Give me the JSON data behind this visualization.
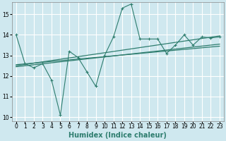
{
  "title": "",
  "xlabel": "Humidex (Indice chaleur)",
  "ylabel": "",
  "background_color": "#cfe8ef",
  "grid_color": "#ffffff",
  "line_color": "#2e7d6e",
  "xlim": [
    -0.5,
    23.5
  ],
  "ylim": [
    9.8,
    15.6
  ],
  "yticks": [
    10,
    11,
    12,
    13,
    14,
    15
  ],
  "xticks": [
    0,
    1,
    2,
    3,
    4,
    5,
    6,
    7,
    8,
    9,
    10,
    11,
    12,
    13,
    14,
    15,
    16,
    17,
    18,
    19,
    20,
    21,
    22,
    23
  ],
  "series1_x": [
    0,
    1,
    2,
    3,
    4,
    5,
    6,
    7,
    8,
    9,
    10,
    11,
    12,
    13,
    14,
    15,
    16,
    17,
    18,
    19,
    20,
    21,
    22,
    23
  ],
  "series1_y": [
    14.0,
    12.6,
    12.4,
    12.6,
    11.8,
    10.1,
    13.2,
    12.9,
    12.2,
    11.5,
    13.0,
    13.9,
    15.3,
    15.5,
    13.8,
    13.8,
    13.8,
    13.1,
    13.5,
    14.0,
    13.5,
    13.9,
    13.85,
    13.9
  ],
  "series2_x": [
    0,
    23
  ],
  "series2_y": [
    12.55,
    13.45
  ],
  "series3_x": [
    0,
    23
  ],
  "series3_y": [
    12.45,
    13.55
  ],
  "series4_x": [
    0,
    23
  ],
  "series4_y": [
    12.5,
    13.95
  ],
  "tick_fontsize": 5.5,
  "label_fontsize": 7
}
